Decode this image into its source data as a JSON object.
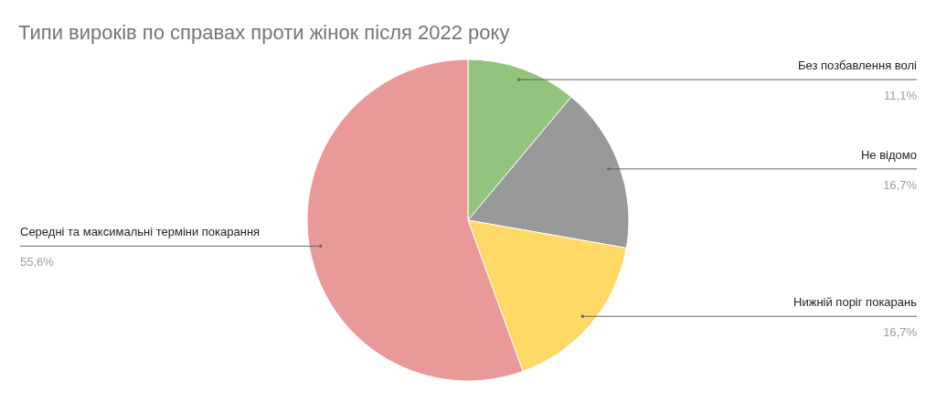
{
  "chart_data": {
    "type": "pie",
    "title": "Типи вироків по справах проти жінок після 2022 року",
    "categories": [
      "Без позбавлення волі",
      "Не відомо",
      "Нижній поріг покарань",
      "Середні та максимальні терміни покарання"
    ],
    "values": [
      11.1,
      16.7,
      16.7,
      55.6
    ],
    "colors": [
      "#93c47d",
      "#999999",
      "#ffd966",
      "#ea9999"
    ],
    "value_labels": [
      "11,1%",
      "16,7%",
      "16,7%",
      "55,6%"
    ]
  }
}
